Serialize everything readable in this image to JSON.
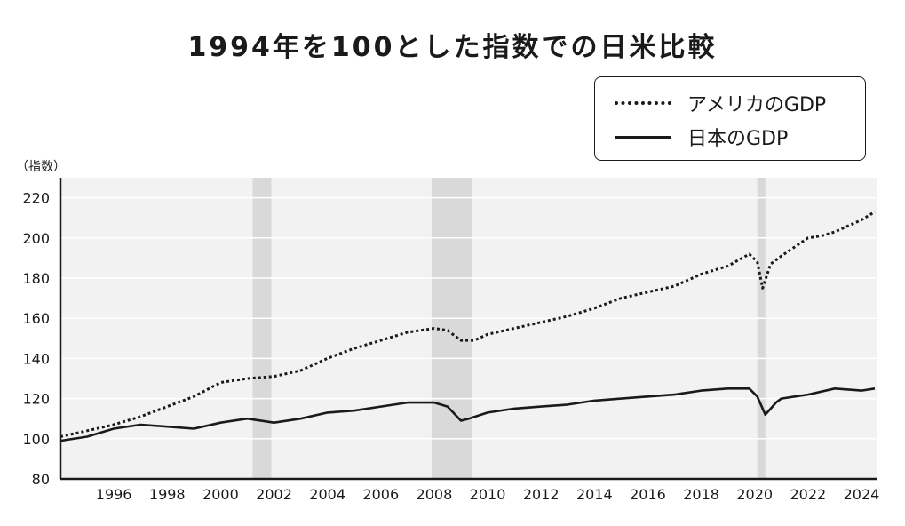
{
  "chart_data": {
    "type": "line",
    "title": "1994年を100とした指数での日米比較",
    "ylabel": "（指数）",
    "xlabel": "",
    "ylim": [
      80,
      230
    ],
    "xlim": [
      1994,
      2024.6
    ],
    "yticks": [
      80,
      100,
      120,
      140,
      160,
      180,
      200,
      220
    ],
    "xticks": [
      1996,
      1998,
      2000,
      2002,
      2004,
      2006,
      2008,
      2010,
      2012,
      2014,
      2016,
      2018,
      2020,
      2022,
      2024
    ],
    "grid": "horizontal",
    "legend_position": "top-right",
    "recession_bands": [
      [
        2001.2,
        2001.9
      ],
      [
        2007.9,
        2009.4
      ],
      [
        2020.1,
        2020.4
      ]
    ],
    "series": [
      {
        "name": "アメリカのGDP",
        "style": "dotted",
        "x": [
          1994,
          1995,
          1996,
          1997,
          1998,
          1999,
          2000,
          2001,
          2002,
          2003,
          2004,
          2005,
          2006,
          2007,
          2008,
          2008.5,
          2009,
          2009.5,
          2010,
          2011,
          2012,
          2013,
          2014,
          2015,
          2016,
          2017,
          2018,
          2019,
          2019.8,
          2020.1,
          2020.3,
          2020.6,
          2021,
          2022,
          2022.5,
          2023,
          2024,
          2024.5
        ],
        "values": [
          101,
          104,
          107,
          111,
          116,
          121,
          128,
          130,
          131,
          134,
          140,
          145,
          149,
          153,
          155,
          154,
          149,
          149,
          152,
          155,
          158,
          161,
          165,
          170,
          173,
          176,
          182,
          186,
          192,
          188,
          175,
          187,
          191,
          200,
          201,
          203,
          209,
          213
        ]
      },
      {
        "name": "日本のGDP",
        "style": "solid",
        "x": [
          1994,
          1995,
          1996,
          1997,
          1998,
          1999,
          2000,
          2001,
          2002,
          2003,
          2004,
          2005,
          2006,
          2007,
          2008,
          2008.5,
          2009,
          2009.3,
          2010,
          2011,
          2012,
          2013,
          2014,
          2015,
          2016,
          2017,
          2018,
          2019,
          2019.8,
          2020.1,
          2020.4,
          2020.8,
          2021,
          2022,
          2023,
          2024,
          2024.5
        ],
        "values": [
          99,
          101,
          105,
          107,
          106,
          105,
          108,
          110,
          108,
          110,
          113,
          114,
          116,
          118,
          118,
          116,
          109,
          110,
          113,
          115,
          116,
          117,
          119,
          120,
          121,
          122,
          124,
          125,
          125,
          121,
          112,
          118,
          120,
          122,
          125,
          124,
          125
        ]
      }
    ]
  }
}
